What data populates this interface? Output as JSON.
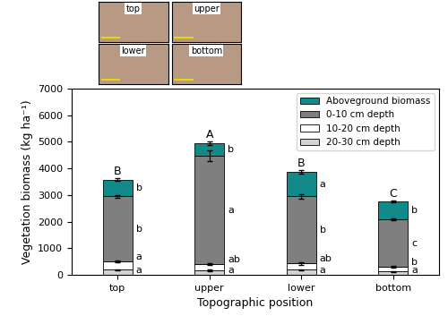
{
  "chart_data": {
    "type": "bar",
    "stacked": true,
    "x_label": "Topographic position",
    "y_label": "Vegetation biomass (kg ha⁻¹)",
    "categories": [
      "top",
      "upper",
      "lower",
      "bottom"
    ],
    "ylim": [
      0,
      7000
    ],
    "yticks": [
      0,
      1000,
      2000,
      3000,
      4000,
      5000,
      6000,
      7000
    ],
    "legend": "upper right",
    "group_letters": [
      "B",
      "A",
      "B",
      "C"
    ],
    "series": [
      {
        "name": "20-30 cm depth",
        "color": "#d3d3d3",
        "values": [
          200,
          170,
          190,
          130
        ],
        "errors": [
          20,
          20,
          20,
          15
        ],
        "letters": [
          "a",
          "a",
          "a",
          "a"
        ]
      },
      {
        "name": "10-20 cm depth",
        "color": "#ffffff",
        "values": [
          300,
          230,
          240,
          170
        ],
        "errors": [
          40,
          40,
          40,
          30
        ],
        "letters": [
          "a",
          "ab",
          "ab",
          "b"
        ]
      },
      {
        "name": "0-10 cm depth",
        "color": "#7f7f7f",
        "values": [
          2450,
          4060,
          2520,
          1780
        ],
        "errors": [
          40,
          200,
          80,
          30
        ],
        "letters": [
          "b",
          "a",
          "b",
          "c"
        ]
      },
      {
        "name": "Aboveground biomass",
        "color": "#138a8a",
        "values": [
          630,
          480,
          920,
          670
        ],
        "errors": [
          60,
          70,
          60,
          40
        ],
        "letters": [
          "b",
          "b",
          "a",
          "b"
        ]
      }
    ]
  },
  "photos": {
    "labels": [
      "top",
      "upper",
      "lower",
      "bottom"
    ]
  }
}
